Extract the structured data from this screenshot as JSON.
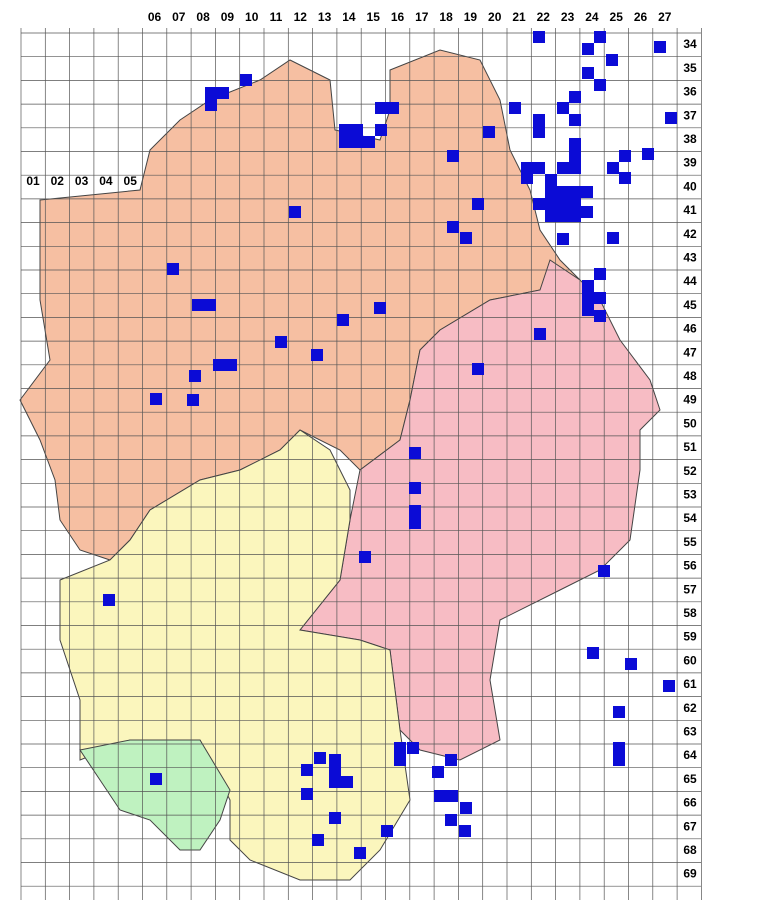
{
  "column_labels": [
    "01",
    "02",
    "03",
    "04",
    "05",
    "06",
    "07",
    "08",
    "09",
    "10",
    "11",
    "12",
    "13",
    "14",
    "15",
    "16",
    "17",
    "18",
    "19",
    "20",
    "21",
    "22",
    "23",
    "24",
    "25",
    "26",
    "27"
  ],
  "row_labels": [
    "34",
    "35",
    "36",
    "37",
    "38",
    "39",
    "40",
    "41",
    "42",
    "43",
    "44",
    "45",
    "46",
    "47",
    "48",
    "49",
    "50",
    "51",
    "52",
    "53",
    "54",
    "55",
    "56",
    "57",
    "58",
    "59",
    "60",
    "61",
    "62",
    "63",
    "64",
    "65",
    "66",
    "67",
    "68",
    "69"
  ]
}
